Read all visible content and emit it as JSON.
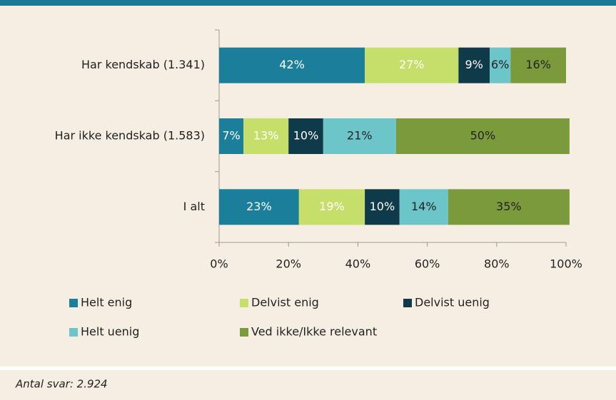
{
  "chart_data": {
    "type": "stacked_barh",
    "categories": [
      "Har kendskab (1.341)",
      "Har ikke kendskab (1.583)",
      "I alt"
    ],
    "series": [
      {
        "name": "Helt enig",
        "color": "#1b7f9b",
        "values": [
          42,
          7,
          23
        ],
        "value_labels": [
          "42%",
          "7%",
          "23%"
        ]
      },
      {
        "name": "Delvist enig",
        "color": "#c6df6b",
        "values": [
          27,
          13,
          19
        ],
        "value_labels": [
          "27%",
          "13%",
          "19%"
        ]
      },
      {
        "name": "Delvist uenig",
        "color": "#0e3a4a",
        "values": [
          9,
          10,
          10
        ],
        "value_labels": [
          "9%",
          "10%",
          "10%"
        ]
      },
      {
        "name": "Helt uenig",
        "color": "#6cc5c8",
        "values": [
          6,
          21,
          14
        ],
        "value_labels": [
          "6%",
          "21%",
          "14%"
        ]
      },
      {
        "name": "Ved ikke/Ikke relevant",
        "color": "#7b9a3b",
        "values": [
          16,
          50,
          35
        ],
        "value_labels": [
          "16%",
          "50%",
          "35%"
        ]
      }
    ],
    "xlim": [
      0,
      100
    ],
    "xticks": [
      {
        "value": 0,
        "label": "0%"
      },
      {
        "value": 20,
        "label": "20%"
      },
      {
        "value": 40,
        "label": "40%"
      },
      {
        "value": 60,
        "label": "60%"
      },
      {
        "value": 80,
        "label": "80%"
      },
      {
        "value": 100,
        "label": "100%"
      }
    ],
    "grid": false,
    "note": "Antal svar: 2.924"
  }
}
